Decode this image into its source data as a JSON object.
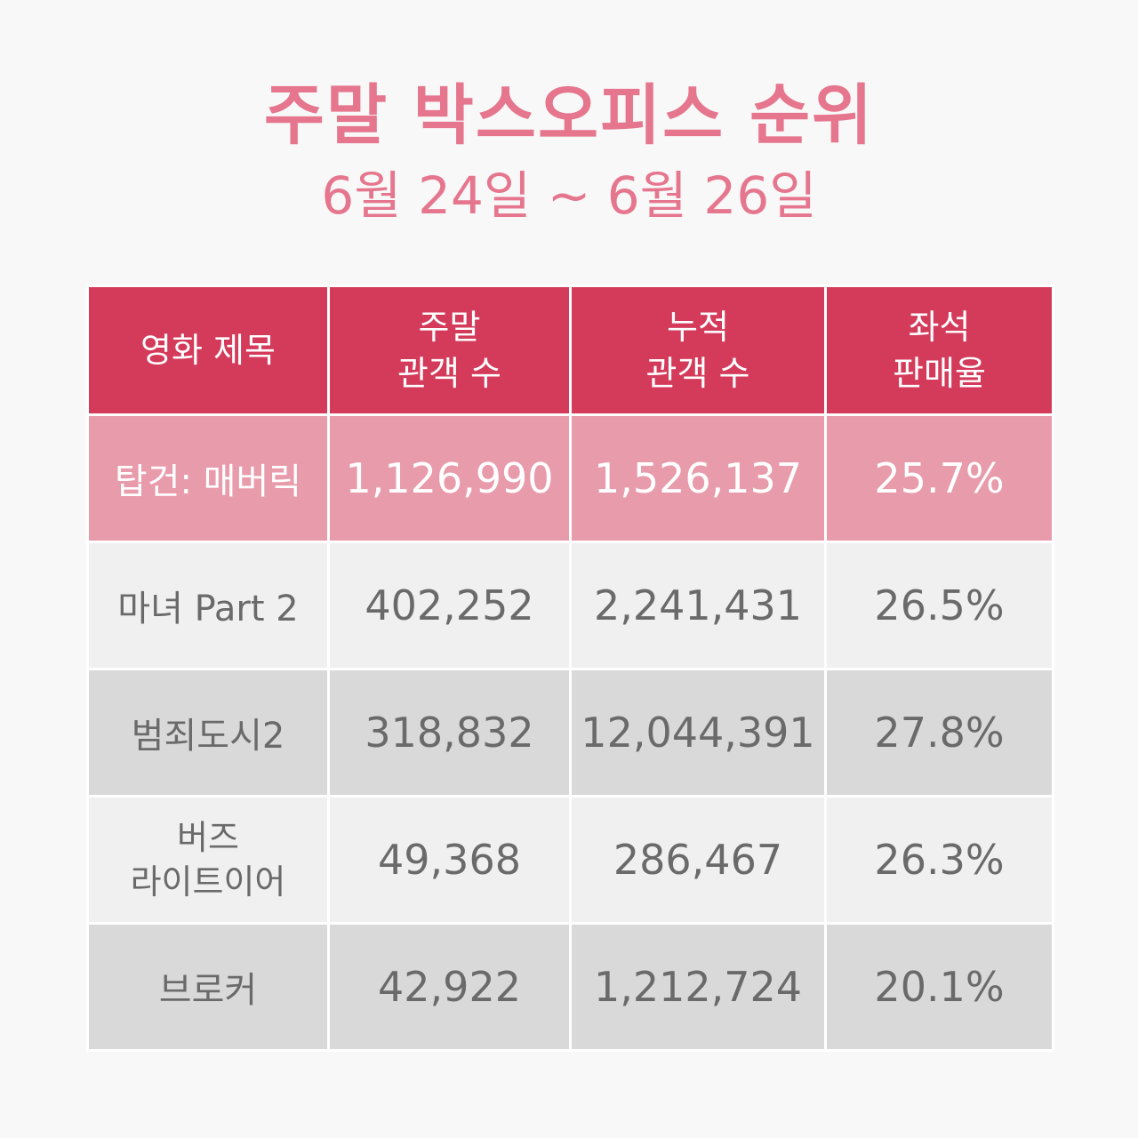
{
  "title": "주말 박스오피스 순위",
  "subtitle": "6월 24일 ~ 6월 26일",
  "table": {
    "headers": [
      {
        "lines": [
          "영화 제목"
        ]
      },
      {
        "lines": [
          "주말",
          "관객 수"
        ]
      },
      {
        "lines": [
          "누적",
          "관객 수"
        ]
      },
      {
        "lines": [
          "좌석",
          "판매율"
        ]
      }
    ],
    "rows": [
      {
        "name_lines": [
          "탑건: 매버릭"
        ],
        "weekend": "1,126,990",
        "total": "1,526,137",
        "seat_rate": "25.7%"
      },
      {
        "name_lines": [
          "마녀 Part 2"
        ],
        "weekend": "402,252",
        "total": "2,241,431",
        "seat_rate": "26.5%"
      },
      {
        "name_lines": [
          "범죄도시2"
        ],
        "weekend": "318,832",
        "total": "12,044,391",
        "seat_rate": "27.8%"
      },
      {
        "name_lines": [
          "버즈",
          "라이트이어"
        ],
        "weekend": "49,368",
        "total": "286,467",
        "seat_rate": "26.3%"
      },
      {
        "name_lines": [
          "브로커"
        ],
        "weekend": "42,922",
        "total": "1,212,724",
        "seat_rate": "20.1%"
      }
    ]
  },
  "colors": {
    "title": "#e5768e",
    "header_bg": "#d43a5a",
    "highlight_row_bg": "#e89bab",
    "light_row_bg": "#f0f0f0",
    "dark_row_bg": "#d9d9d9",
    "body_text": "#6a6a6a"
  }
}
